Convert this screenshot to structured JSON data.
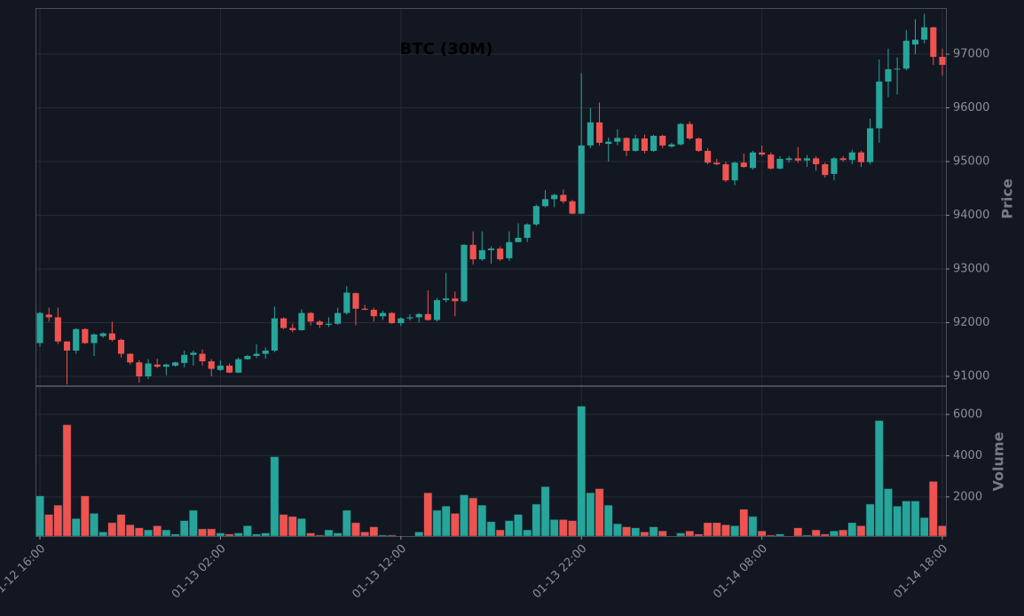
{
  "chart_data": {
    "type": "candlestick",
    "title": "BTC (30M)",
    "y_label": "Price",
    "y2_label": "Volume",
    "categories": [
      "01-12 16:00",
      null,
      null,
      null,
      null,
      null,
      null,
      null,
      null,
      null,
      null,
      null,
      null,
      null,
      null,
      null,
      null,
      null,
      null,
      null,
      "01-13 02:00",
      null,
      null,
      null,
      null,
      null,
      null,
      null,
      null,
      null,
      null,
      null,
      null,
      null,
      null,
      null,
      null,
      null,
      null,
      null,
      "01-13 12:00",
      null,
      null,
      null,
      null,
      null,
      null,
      null,
      null,
      null,
      null,
      null,
      null,
      null,
      null,
      null,
      null,
      null,
      null,
      null,
      "01-13 22:00",
      null,
      null,
      null,
      null,
      null,
      null,
      null,
      null,
      null,
      null,
      null,
      null,
      null,
      null,
      null,
      null,
      null,
      null,
      null,
      "01-14 08:00",
      null,
      null,
      null,
      null,
      null,
      null,
      null,
      null,
      null,
      null,
      null,
      null,
      null,
      null,
      null,
      null,
      null,
      null,
      null,
      "01-14 18:00"
    ],
    "open": [
      91620,
      92150,
      92100,
      91650,
      91480,
      91880,
      91620,
      91750,
      91800,
      91680,
      91420,
      91260,
      91000,
      91220,
      91180,
      91200,
      91250,
      91400,
      91420,
      91280,
      91120,
      91200,
      91070,
      91320,
      91380,
      91420,
      91480,
      92080,
      91900,
      91860,
      92180,
      92020,
      91960,
      91980,
      92180,
      92550,
      92260,
      92240,
      92120,
      92180,
      91990,
      92080,
      92100,
      92160,
      92050,
      92420,
      92450,
      92400,
      93450,
      93180,
      93350,
      93380,
      93200,
      93500,
      93580,
      93830,
      94170,
      94300,
      94380,
      94260,
      94030,
      95300,
      95730,
      95330,
      95370,
      95440,
      95200,
      95430,
      95200,
      95480,
      95280,
      95320,
      95700,
      95430,
      95200,
      94980,
      94950,
      94650,
      94980,
      94880,
      95170,
      95130,
      94870,
      95030,
      95060,
      95020,
      95060,
      94950,
      94770,
      95060,
      95030,
      95170,
      94990,
      95620,
      96490,
      96720,
      96730,
      97180,
      97270,
      97500,
      96950
    ],
    "high": [
      92200,
      92280,
      92280,
      91650,
      91900,
      91900,
      91800,
      91820,
      92020,
      91700,
      91430,
      91300,
      91320,
      91330,
      91240,
      91270,
      91480,
      91480,
      91500,
      91320,
      91300,
      91240,
      91350,
      91400,
      91600,
      91540,
      92300,
      92100,
      91980,
      92250,
      92200,
      92050,
      92100,
      92280,
      92680,
      92560,
      92330,
      92280,
      92220,
      92200,
      92100,
      92160,
      92180,
      92600,
      92460,
      92930,
      92580,
      93460,
      93700,
      93700,
      93420,
      93420,
      93700,
      93850,
      93850,
      94200,
      94470,
      94400,
      94480,
      94290,
      96650,
      96000,
      96100,
      95450,
      95600,
      95450,
      95500,
      95500,
      95500,
      95500,
      95350,
      95720,
      95750,
      95450,
      95250,
      95050,
      95000,
      95000,
      95150,
      95200,
      95300,
      95170,
      95100,
      95100,
      95270,
      95120,
      95100,
      94980,
      95080,
      95100,
      95220,
      95200,
      95800,
      96900,
      97100,
      96940,
      97450,
      97650,
      97750,
      97510,
      97100
    ],
    "low": [
      91550,
      92020,
      91600,
      90850,
      91420,
      91600,
      91380,
      91720,
      91650,
      91350,
      91220,
      90880,
      90950,
      91150,
      91020,
      91180,
      91170,
      91200,
      91200,
      91000,
      91100,
      91060,
      91060,
      91310,
      91340,
      91330,
      91450,
      91880,
      91820,
      91850,
      91950,
      91900,
      91920,
      91960,
      92150,
      91950,
      92230,
      92020,
      92050,
      91980,
      91940,
      92040,
      92000,
      92040,
      92020,
      92380,
      92120,
      92380,
      93080,
      93150,
      93100,
      93150,
      93150,
      93500,
      93500,
      93800,
      94150,
      94150,
      94220,
      94020,
      94020,
      95250,
      95300,
      95000,
      95300,
      95100,
      95180,
      95150,
      95180,
      95250,
      95260,
      95300,
      95400,
      95180,
      94950,
      94930,
      94620,
      94560,
      94880,
      94850,
      95100,
      94850,
      94850,
      94980,
      94980,
      94900,
      94830,
      94700,
      94650,
      95000,
      94950,
      94900,
      94950,
      95350,
      96200,
      96250,
      96700,
      97000,
      97200,
      96800,
      96600
    ],
    "close": [
      92180,
      92100,
      91650,
      91480,
      91880,
      91620,
      91780,
      91800,
      91680,
      91420,
      91260,
      91000,
      91240,
      91180,
      91220,
      91260,
      91400,
      91440,
      91280,
      91140,
      91200,
      91070,
      91320,
      91380,
      91420,
      91480,
      92080,
      91900,
      91860,
      92180,
      92020,
      91960,
      91980,
      92180,
      92560,
      92260,
      92240,
      92120,
      92180,
      91990,
      92080,
      92100,
      92160,
      92050,
      92420,
      92450,
      92400,
      93450,
      93180,
      93350,
      93380,
      93180,
      93500,
      93580,
      93830,
      94170,
      94300,
      94380,
      94260,
      94030,
      95300,
      95730,
      95350,
      95370,
      95440,
      95200,
      95430,
      95200,
      95480,
      95300,
      95320,
      95700,
      95430,
      95200,
      94980,
      94950,
      94650,
      94980,
      94900,
      95170,
      95130,
      94870,
      95050,
      95060,
      95020,
      95060,
      94950,
      94750,
      95060,
      95030,
      95170,
      94990,
      95620,
      96490,
      96720,
      96730,
      97250,
      97270,
      97500,
      96950,
      96800
    ],
    "volume": [
      2050,
      1150,
      1600,
      5500,
      950,
      2050,
      1200,
      300,
      750,
      1150,
      650,
      500,
      400,
      600,
      400,
      200,
      850,
      1350,
      450,
      450,
      250,
      200,
      250,
      600,
      200,
      250,
      3950,
      1150,
      1050,
      950,
      250,
      150,
      400,
      250,
      1350,
      750,
      300,
      550,
      150,
      150,
      100,
      100,
      300,
      2200,
      1350,
      1550,
      1200,
      2100,
      1950,
      1600,
      800,
      400,
      850,
      1150,
      400,
      1650,
      2500,
      900,
      900,
      850,
      6400,
      2200,
      2400,
      1600,
      700,
      550,
      500,
      300,
      550,
      350,
      100,
      250,
      350,
      200,
      750,
      750,
      650,
      600,
      1400,
      1050,
      350,
      150,
      200,
      100,
      500,
      150,
      400,
      200,
      350,
      400,
      750,
      600,
      1650,
      5700,
      2400,
      1550,
      1800,
      1800,
      1000,
      2750,
      600
    ],
    "up_color": "#26a69a",
    "down_color": "#ef5350",
    "ylim": [
      90835,
      97860
    ],
    "yticks": [
      91000,
      92000,
      93000,
      94000,
      95000,
      96000,
      97000
    ],
    "y2lim": [
      100,
      7330
    ],
    "y2ticks": [
      2000,
      4000,
      6000
    ],
    "grid": true
  }
}
